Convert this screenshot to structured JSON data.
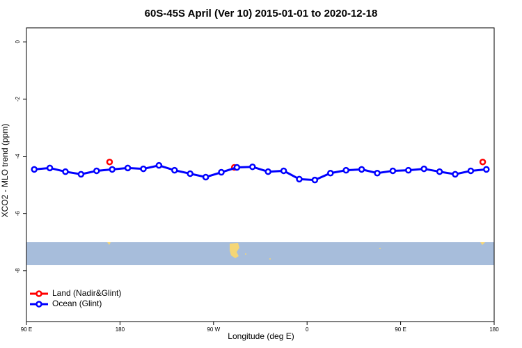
{
  "chart_data": {
    "type": "line",
    "title": "60S-45S April (Ver 10)   2015-01-01 to 2020-12-18",
    "xlabel": "Longitude (deg E)",
    "ylabel": "XCO2 - MLO trend (ppm)",
    "xlim": [
      90,
      540
    ],
    "xticks": [
      {
        "value": 90,
        "label": "90 E"
      },
      {
        "value": 180,
        "label": "180"
      },
      {
        "value": 270,
        "label": "90 W"
      },
      {
        "value": 360,
        "label": "0"
      },
      {
        "value": 450,
        "label": "90 E"
      },
      {
        "value": 540,
        "label": "180"
      }
    ],
    "ylim": [
      -9.78,
      0.49
    ],
    "yticks": [
      0,
      -2,
      -4,
      -6,
      -8
    ],
    "legend": "bottom-left",
    "series": [
      {
        "name": "Land (Nadir&Glint)",
        "color": "#ff0000",
        "x": [
          170,
          290,
          529
        ],
        "values": [
          -4.2,
          -4.39,
          -4.2
        ]
      },
      {
        "name": "Ocean (Glint)",
        "color": "#0000ff",
        "x": [
          97.5,
          112.5,
          127.5,
          142.5,
          157.5,
          172.5,
          187.5,
          202.5,
          217.5,
          232.5,
          247.5,
          262.5,
          277.5,
          292.5,
          307.5,
          322.5,
          337.5,
          352.5,
          367.5,
          382.5,
          397.5,
          412.5,
          427.5,
          442.5,
          457.5,
          472.5,
          487.5,
          502.5,
          517.5,
          532.5
        ],
        "values": [
          -4.46,
          -4.41,
          -4.54,
          -4.63,
          -4.51,
          -4.46,
          -4.41,
          -4.44,
          -4.32,
          -4.49,
          -4.61,
          -4.73,
          -4.56,
          -4.39,
          -4.37,
          -4.54,
          -4.51,
          -4.8,
          -4.83,
          -4.59,
          -4.49,
          -4.46,
          -4.59,
          -4.51,
          -4.49,
          -4.44,
          -4.54,
          -4.63,
          -4.51,
          -4.46
        ]
      }
    ]
  }
}
